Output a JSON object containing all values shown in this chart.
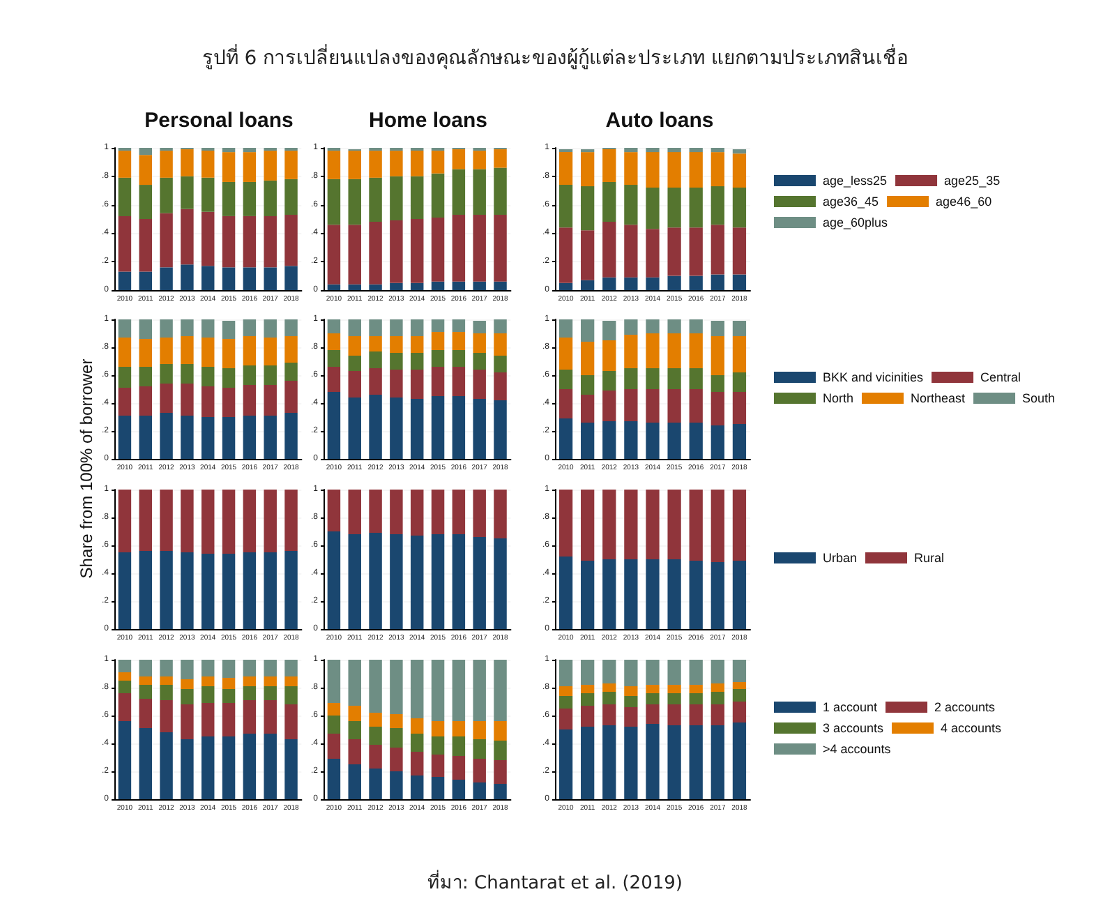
{
  "chart_data": [
    {
      "type": "other",
      "title": "รูปที่ 6 การเปลี่ยนแปลงของคุณลักษณะของผู้กู้แต่ละประเภท แยกตามประเภทสินเชื่อ",
      "ylabel": "Share from 100% of borrower",
      "annotations": [
        "ที่มา: Chantarat et al. (2019)"
      ]
    },
    {
      "type": "bar",
      "title": "Personal loans",
      "stacked": true,
      "grid": "y",
      "legend": false,
      "ylim": [
        0,
        1
      ],
      "yticks": [
        {
          "value": 0,
          "label": "0"
        },
        {
          "value": 0.2,
          "label": ".2"
        },
        {
          "value": 0.4,
          "label": ".4"
        },
        {
          "value": 0.6,
          "label": ".6"
        },
        {
          "value": 0.8,
          "label": ".8"
        },
        {
          "value": 1,
          "label": "1"
        }
      ],
      "categories": [
        "2010",
        "2011",
        "2012",
        "2013",
        "2014",
        "2015",
        "2016",
        "2017",
        "2018"
      ],
      "series": [
        {
          "color": "#1a476f",
          "values": [
            0.13,
            0.13,
            0.16,
            0.18,
            0.17,
            0.16,
            0.16,
            0.16,
            0.17
          ]
        },
        {
          "color": "#90353b",
          "values": [
            0.39,
            0.37,
            0.38,
            0.39,
            0.38,
            0.36,
            0.36,
            0.36,
            0.36
          ]
        },
        {
          "color": "#55752f",
          "values": [
            0.27,
            0.24,
            0.25,
            0.23,
            0.24,
            0.24,
            0.24,
            0.25,
            0.25
          ]
        },
        {
          "color": "#e37e00",
          "values": [
            0.19,
            0.21,
            0.19,
            0.19,
            0.19,
            0.21,
            0.21,
            0.21,
            0.2
          ]
        },
        {
          "color": "#6e8e84",
          "values": [
            0.02,
            0.05,
            0.02,
            0.01,
            0.02,
            0.03,
            0.03,
            0.02,
            0.02
          ]
        }
      ]
    },
    {
      "type": "bar",
      "title": "Home loans",
      "stacked": true,
      "grid": "y",
      "legend": false,
      "ylim": [
        0,
        1
      ],
      "yticks": [
        {
          "value": 0,
          "label": "0"
        },
        {
          "value": 0.2,
          "label": ".2"
        },
        {
          "value": 0.4,
          "label": ".4"
        },
        {
          "value": 0.6,
          "label": ".6"
        },
        {
          "value": 0.8,
          "label": ".8"
        },
        {
          "value": 1,
          "label": "1"
        }
      ],
      "categories": [
        "2010",
        "2011",
        "2012",
        "2013",
        "2014",
        "2015",
        "2016",
        "2017",
        "2018"
      ],
      "series": [
        {
          "color": "#1a476f",
          "values": [
            0.04,
            0.04,
            0.04,
            0.05,
            0.05,
            0.06,
            0.06,
            0.06,
            0.06
          ]
        },
        {
          "color": "#90353b",
          "values": [
            0.42,
            0.42,
            0.44,
            0.44,
            0.45,
            0.45,
            0.47,
            0.47,
            0.47
          ]
        },
        {
          "color": "#55752f",
          "values": [
            0.32,
            0.32,
            0.31,
            0.31,
            0.3,
            0.31,
            0.32,
            0.32,
            0.33
          ]
        },
        {
          "color": "#e37e00",
          "values": [
            0.2,
            0.2,
            0.19,
            0.18,
            0.18,
            0.16,
            0.14,
            0.13,
            0.13
          ]
        },
        {
          "color": "#6e8e84",
          "values": [
            0.02,
            0.01,
            0.02,
            0.02,
            0.02,
            0.02,
            0.01,
            0.02,
            0.01
          ]
        }
      ]
    },
    {
      "type": "bar",
      "title": "Auto loans",
      "stacked": true,
      "grid": "y",
      "legend": "right",
      "ylim": [
        0,
        1
      ],
      "yticks": [
        {
          "value": 0,
          "label": "0"
        },
        {
          "value": 0.2,
          "label": ".2"
        },
        {
          "value": 0.4,
          "label": ".4"
        },
        {
          "value": 0.6,
          "label": ".6"
        },
        {
          "value": 0.8,
          "label": ".8"
        },
        {
          "value": 1,
          "label": "1"
        }
      ],
      "categories": [
        "2010",
        "2011",
        "2012",
        "2013",
        "2014",
        "2015",
        "2016",
        "2017",
        "2018"
      ],
      "series": [
        {
          "name": "age_less25",
          "color": "#1a476f",
          "values": [
            0.05,
            0.07,
            0.09,
            0.09,
            0.09,
            0.1,
            0.1,
            0.11,
            0.11
          ]
        },
        {
          "name": "age25_35",
          "color": "#90353b",
          "values": [
            0.39,
            0.35,
            0.39,
            0.37,
            0.34,
            0.34,
            0.34,
            0.35,
            0.33
          ]
        },
        {
          "name": "age36_45",
          "color": "#55752f",
          "values": [
            0.3,
            0.31,
            0.28,
            0.28,
            0.29,
            0.28,
            0.28,
            0.27,
            0.28
          ]
        },
        {
          "name": "age46_60",
          "color": "#e37e00",
          "values": [
            0.23,
            0.24,
            0.23,
            0.23,
            0.25,
            0.25,
            0.25,
            0.24,
            0.24
          ]
        },
        {
          "name": "age_60plus",
          "color": "#6e8e84",
          "values": [
            0.02,
            0.02,
            0.01,
            0.03,
            0.03,
            0.03,
            0.03,
            0.03,
            0.03
          ]
        }
      ]
    },
    {
      "type": "bar",
      "stacked": true,
      "grid": "y",
      "legend": false,
      "ylim": [
        0,
        1
      ],
      "yticks": [
        {
          "value": 0,
          "label": "0"
        },
        {
          "value": 0.2,
          "label": ".2"
        },
        {
          "value": 0.4,
          "label": ".4"
        },
        {
          "value": 0.6,
          "label": ".6"
        },
        {
          "value": 0.8,
          "label": ".8"
        },
        {
          "value": 1,
          "label": "1"
        }
      ],
      "categories": [
        "2010",
        "2011",
        "2012",
        "2013",
        "2014",
        "2015",
        "2016",
        "2017",
        "2018"
      ],
      "series": [
        {
          "color": "#1a476f",
          "values": [
            0.31,
            0.31,
            0.33,
            0.31,
            0.3,
            0.3,
            0.31,
            0.31,
            0.33
          ]
        },
        {
          "color": "#90353b",
          "values": [
            0.2,
            0.21,
            0.21,
            0.23,
            0.22,
            0.21,
            0.22,
            0.22,
            0.23
          ]
        },
        {
          "color": "#55752f",
          "values": [
            0.15,
            0.14,
            0.14,
            0.14,
            0.14,
            0.14,
            0.14,
            0.14,
            0.13
          ]
        },
        {
          "color": "#e37e00",
          "values": [
            0.21,
            0.2,
            0.19,
            0.2,
            0.21,
            0.21,
            0.21,
            0.2,
            0.19
          ]
        },
        {
          "color": "#6e8e84",
          "values": [
            0.13,
            0.14,
            0.13,
            0.12,
            0.13,
            0.13,
            0.12,
            0.13,
            0.12
          ]
        }
      ]
    },
    {
      "type": "bar",
      "stacked": true,
      "grid": "y",
      "legend": false,
      "ylim": [
        0,
        1
      ],
      "yticks": [
        {
          "value": 0,
          "label": "0"
        },
        {
          "value": 0.2,
          "label": ".2"
        },
        {
          "value": 0.4,
          "label": ".4"
        },
        {
          "value": 0.6,
          "label": ".6"
        },
        {
          "value": 0.8,
          "label": ".8"
        },
        {
          "value": 1,
          "label": "1"
        }
      ],
      "categories": [
        "2010",
        "2011",
        "2012",
        "2013",
        "2014",
        "2015",
        "2016",
        "2017",
        "2018"
      ],
      "series": [
        {
          "color": "#1a476f",
          "values": [
            0.48,
            0.44,
            0.46,
            0.44,
            0.43,
            0.45,
            0.45,
            0.43,
            0.42
          ]
        },
        {
          "color": "#90353b",
          "values": [
            0.18,
            0.19,
            0.19,
            0.2,
            0.21,
            0.21,
            0.21,
            0.21,
            0.2
          ]
        },
        {
          "color": "#55752f",
          "values": [
            0.12,
            0.11,
            0.12,
            0.12,
            0.12,
            0.12,
            0.12,
            0.12,
            0.12
          ]
        },
        {
          "color": "#e37e00",
          "values": [
            0.12,
            0.14,
            0.11,
            0.12,
            0.12,
            0.13,
            0.13,
            0.14,
            0.16
          ]
        },
        {
          "color": "#6e8e84",
          "values": [
            0.1,
            0.12,
            0.12,
            0.12,
            0.12,
            0.09,
            0.09,
            0.09,
            0.1
          ]
        }
      ]
    },
    {
      "type": "bar",
      "stacked": true,
      "grid": "y",
      "legend": "right",
      "ylim": [
        0,
        1
      ],
      "yticks": [
        {
          "value": 0,
          "label": "0"
        },
        {
          "value": 0.2,
          "label": ".2"
        },
        {
          "value": 0.4,
          "label": ".4"
        },
        {
          "value": 0.6,
          "label": ".6"
        },
        {
          "value": 0.8,
          "label": ".8"
        },
        {
          "value": 1,
          "label": "1"
        }
      ],
      "categories": [
        "2010",
        "2011",
        "2012",
        "2013",
        "2014",
        "2015",
        "2016",
        "2017",
        "2018"
      ],
      "series": [
        {
          "name": "BKK and vicinities",
          "color": "#1a476f",
          "values": [
            0.29,
            0.26,
            0.27,
            0.27,
            0.26,
            0.26,
            0.26,
            0.24,
            0.25
          ]
        },
        {
          "name": "Central",
          "color": "#90353b",
          "values": [
            0.21,
            0.2,
            0.22,
            0.23,
            0.24,
            0.24,
            0.24,
            0.24,
            0.23
          ]
        },
        {
          "name": "North",
          "color": "#55752f",
          "values": [
            0.14,
            0.14,
            0.14,
            0.15,
            0.15,
            0.15,
            0.15,
            0.12,
            0.14
          ]
        },
        {
          "name": "Northeast",
          "color": "#e37e00",
          "values": [
            0.23,
            0.24,
            0.22,
            0.24,
            0.25,
            0.25,
            0.25,
            0.28,
            0.26
          ]
        },
        {
          "name": "South",
          "color": "#6e8e84",
          "values": [
            0.13,
            0.16,
            0.14,
            0.11,
            0.1,
            0.1,
            0.1,
            0.11,
            0.11
          ]
        }
      ]
    },
    {
      "type": "bar",
      "stacked": true,
      "grid": "y",
      "legend": false,
      "ylim": [
        0,
        1
      ],
      "yticks": [
        {
          "value": 0,
          "label": "0"
        },
        {
          "value": 0.2,
          "label": ".2"
        },
        {
          "value": 0.4,
          "label": ".4"
        },
        {
          "value": 0.6,
          "label": ".6"
        },
        {
          "value": 0.8,
          "label": ".8"
        },
        {
          "value": 1,
          "label": "1"
        }
      ],
      "categories": [
        "2010",
        "2011",
        "2012",
        "2013",
        "2014",
        "2015",
        "2016",
        "2017",
        "2018"
      ],
      "series": [
        {
          "color": "#1a476f",
          "values": [
            0.55,
            0.56,
            0.56,
            0.55,
            0.54,
            0.54,
            0.55,
            0.55,
            0.56
          ]
        },
        {
          "color": "#90353b",
          "values": [
            0.45,
            0.44,
            0.44,
            0.45,
            0.46,
            0.46,
            0.45,
            0.45,
            0.44
          ]
        }
      ]
    },
    {
      "type": "bar",
      "stacked": true,
      "grid": "y",
      "legend": false,
      "ylim": [
        0,
        1
      ],
      "yticks": [
        {
          "value": 0,
          "label": "0"
        },
        {
          "value": 0.2,
          "label": ".2"
        },
        {
          "value": 0.4,
          "label": ".4"
        },
        {
          "value": 0.6,
          "label": ".6"
        },
        {
          "value": 0.8,
          "label": ".8"
        },
        {
          "value": 1,
          "label": "1"
        }
      ],
      "categories": [
        "2010",
        "2011",
        "2012",
        "2013",
        "2014",
        "2015",
        "2016",
        "2017",
        "2018"
      ],
      "series": [
        {
          "color": "#1a476f",
          "values": [
            0.7,
            0.68,
            0.69,
            0.68,
            0.67,
            0.68,
            0.68,
            0.66,
            0.65
          ]
        },
        {
          "color": "#90353b",
          "values": [
            0.3,
            0.32,
            0.31,
            0.32,
            0.33,
            0.32,
            0.32,
            0.34,
            0.35
          ]
        }
      ]
    },
    {
      "type": "bar",
      "stacked": true,
      "grid": "y",
      "legend": "right",
      "ylim": [
        0,
        1
      ],
      "yticks": [
        {
          "value": 0,
          "label": "0"
        },
        {
          "value": 0.2,
          "label": ".2"
        },
        {
          "value": 0.4,
          "label": ".4"
        },
        {
          "value": 0.6,
          "label": ".6"
        },
        {
          "value": 0.8,
          "label": ".8"
        },
        {
          "value": 1,
          "label": "1"
        }
      ],
      "categories": [
        "2010",
        "2011",
        "2012",
        "2013",
        "2014",
        "2015",
        "2016",
        "2017",
        "2018"
      ],
      "series": [
        {
          "name": "Urban",
          "color": "#1a476f",
          "values": [
            0.52,
            0.49,
            0.5,
            0.5,
            0.5,
            0.5,
            0.49,
            0.48,
            0.49
          ]
        },
        {
          "name": "Rural",
          "color": "#90353b",
          "values": [
            0.48,
            0.51,
            0.5,
            0.5,
            0.5,
            0.5,
            0.51,
            0.52,
            0.51
          ]
        }
      ]
    },
    {
      "type": "bar",
      "stacked": true,
      "grid": "y",
      "legend": false,
      "ylim": [
        0,
        1
      ],
      "yticks": [
        {
          "value": 0,
          "label": "0"
        },
        {
          "value": 0.2,
          "label": ".2"
        },
        {
          "value": 0.4,
          "label": ".4"
        },
        {
          "value": 0.6,
          "label": ".6"
        },
        {
          "value": 0.8,
          "label": ".8"
        },
        {
          "value": 1,
          "label": "1"
        }
      ],
      "categories": [
        "2010",
        "2011",
        "2012",
        "2013",
        "2014",
        "2015",
        "2016",
        "2017",
        "2018"
      ],
      "series": [
        {
          "color": "#1a476f",
          "values": [
            0.56,
            0.51,
            0.48,
            0.43,
            0.45,
            0.45,
            0.47,
            0.47,
            0.43
          ]
        },
        {
          "color": "#90353b",
          "values": [
            0.2,
            0.21,
            0.23,
            0.25,
            0.24,
            0.24,
            0.24,
            0.24,
            0.25
          ]
        },
        {
          "color": "#55752f",
          "values": [
            0.09,
            0.1,
            0.11,
            0.11,
            0.12,
            0.1,
            0.1,
            0.1,
            0.13
          ]
        },
        {
          "color": "#e37e00",
          "values": [
            0.06,
            0.06,
            0.06,
            0.07,
            0.07,
            0.08,
            0.07,
            0.07,
            0.07
          ]
        },
        {
          "color": "#6e8e84",
          "values": [
            0.09,
            0.12,
            0.12,
            0.14,
            0.12,
            0.13,
            0.12,
            0.12,
            0.12
          ]
        }
      ]
    },
    {
      "type": "bar",
      "stacked": true,
      "grid": "y",
      "legend": false,
      "ylim": [
        0,
        1
      ],
      "yticks": [
        {
          "value": 0,
          "label": "0"
        },
        {
          "value": 0.2,
          "label": ".2"
        },
        {
          "value": 0.4,
          "label": ".4"
        },
        {
          "value": 0.6,
          "label": ".6"
        },
        {
          "value": 0.8,
          "label": ".8"
        },
        {
          "value": 1,
          "label": "1"
        }
      ],
      "categories": [
        "2010",
        "2011",
        "2012",
        "2013",
        "2014",
        "2015",
        "2016",
        "2017",
        "2018"
      ],
      "series": [
        {
          "color": "#1a476f",
          "values": [
            0.29,
            0.25,
            0.22,
            0.2,
            0.17,
            0.16,
            0.14,
            0.12,
            0.11
          ]
        },
        {
          "color": "#90353b",
          "values": [
            0.18,
            0.18,
            0.17,
            0.17,
            0.17,
            0.16,
            0.17,
            0.17,
            0.17
          ]
        },
        {
          "color": "#55752f",
          "values": [
            0.13,
            0.13,
            0.13,
            0.14,
            0.13,
            0.13,
            0.14,
            0.14,
            0.14
          ]
        },
        {
          "color": "#e37e00",
          "values": [
            0.09,
            0.11,
            0.1,
            0.1,
            0.11,
            0.11,
            0.11,
            0.13,
            0.14
          ]
        },
        {
          "color": "#6e8e84",
          "values": [
            0.31,
            0.33,
            0.38,
            0.39,
            0.42,
            0.44,
            0.44,
            0.44,
            0.44
          ]
        }
      ]
    },
    {
      "type": "bar",
      "stacked": true,
      "grid": "y",
      "legend": "right",
      "ylim": [
        0,
        1
      ],
      "yticks": [
        {
          "value": 0,
          "label": "0"
        },
        {
          "value": 0.2,
          "label": ".2"
        },
        {
          "value": 0.4,
          "label": ".4"
        },
        {
          "value": 0.6,
          "label": ".6"
        },
        {
          "value": 0.8,
          "label": ".8"
        },
        {
          "value": 1,
          "label": "1"
        }
      ],
      "categories": [
        "2010",
        "2011",
        "2012",
        "2013",
        "2014",
        "2015",
        "2016",
        "2017",
        "2018"
      ],
      "series": [
        {
          "name": "1 account",
          "color": "#1a476f",
          "values": [
            0.5,
            0.52,
            0.53,
            0.52,
            0.54,
            0.53,
            0.53,
            0.53,
            0.55
          ]
        },
        {
          "name": "2 accounts",
          "color": "#90353b",
          "values": [
            0.15,
            0.15,
            0.15,
            0.14,
            0.14,
            0.15,
            0.15,
            0.15,
            0.15
          ]
        },
        {
          "name": "3 accounts",
          "color": "#55752f",
          "values": [
            0.09,
            0.09,
            0.09,
            0.08,
            0.08,
            0.08,
            0.08,
            0.09,
            0.09
          ]
        },
        {
          "name": "4 accounts",
          "color": "#e37e00",
          "values": [
            0.07,
            0.06,
            0.06,
            0.07,
            0.06,
            0.06,
            0.06,
            0.06,
            0.05
          ]
        },
        {
          "name": ">4 accounts",
          "color": "#6e8e84",
          "values": [
            0.19,
            0.18,
            0.17,
            0.19,
            0.18,
            0.18,
            0.18,
            0.17,
            0.16
          ]
        }
      ]
    }
  ]
}
